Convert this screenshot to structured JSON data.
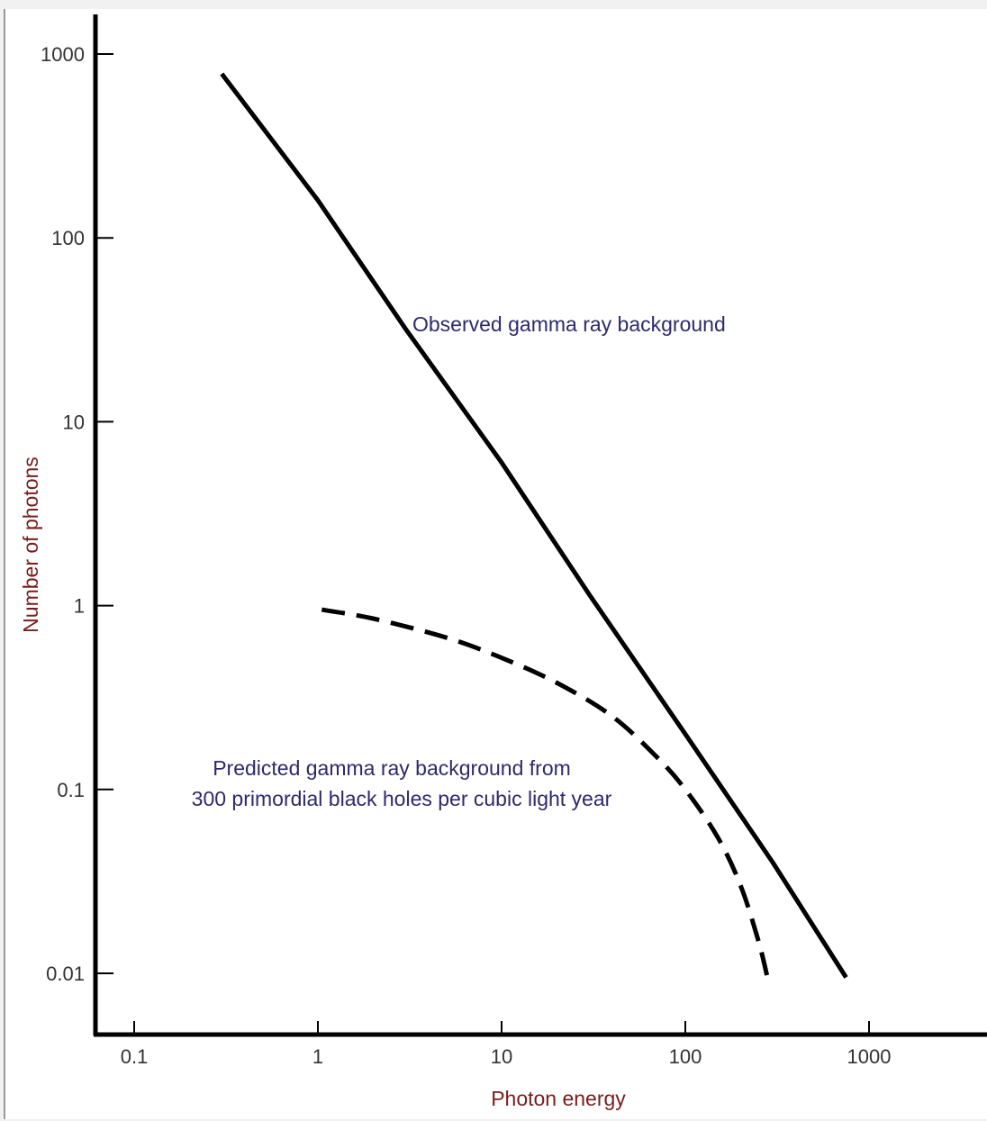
{
  "chart_data": {
    "type": "line",
    "xlabel": "Photon energy",
    "ylabel": "Number of photons",
    "x_scale": "log",
    "y_scale": "log",
    "xlim": [
      0.06,
      4500
    ],
    "ylim": [
      0.005,
      2000
    ],
    "x_ticks": [
      0.1,
      1,
      10,
      100,
      1000
    ],
    "x_tick_labels": [
      "0.1",
      "1",
      "10",
      "100",
      "1000"
    ],
    "y_ticks": [
      0.01,
      0.1,
      1,
      10,
      100,
      1000
    ],
    "y_tick_labels": [
      "0.01",
      "0.1",
      "1",
      "10",
      "100",
      "1000"
    ],
    "grid": false,
    "series": [
      {
        "name": "Observed gamma ray background",
        "style": "solid",
        "color": "#000000",
        "x": [
          0.3,
          1,
          3,
          10,
          30,
          100,
          300,
          750
        ],
        "y": [
          780,
          160,
          32,
          6,
          1.15,
          0.2,
          0.04,
          0.0095
        ]
      },
      {
        "name": "Predicted gamma ray background from 300 primordial black holes per cubic light year",
        "style": "dashed",
        "color": "#000000",
        "x": [
          1.05,
          2,
          5,
          10,
          20,
          40,
          70,
          100,
          150,
          200,
          250,
          280
        ],
        "y": [
          0.95,
          0.85,
          0.67,
          0.52,
          0.38,
          0.25,
          0.15,
          0.1,
          0.055,
          0.03,
          0.015,
          0.0095
        ]
      }
    ],
    "annotations": [
      {
        "target": "series.0",
        "lines": [
          "Observed gamma ray background"
        ]
      },
      {
        "target": "series.1",
        "lines": [
          "Predicted gamma ray background from",
          "300 primordial black holes per cubic light year"
        ]
      }
    ],
    "colors": {
      "axis_title": "#7a1d1d",
      "annotation": "#2c2a6e",
      "tick_label": "#333333",
      "line": "#000000"
    }
  }
}
